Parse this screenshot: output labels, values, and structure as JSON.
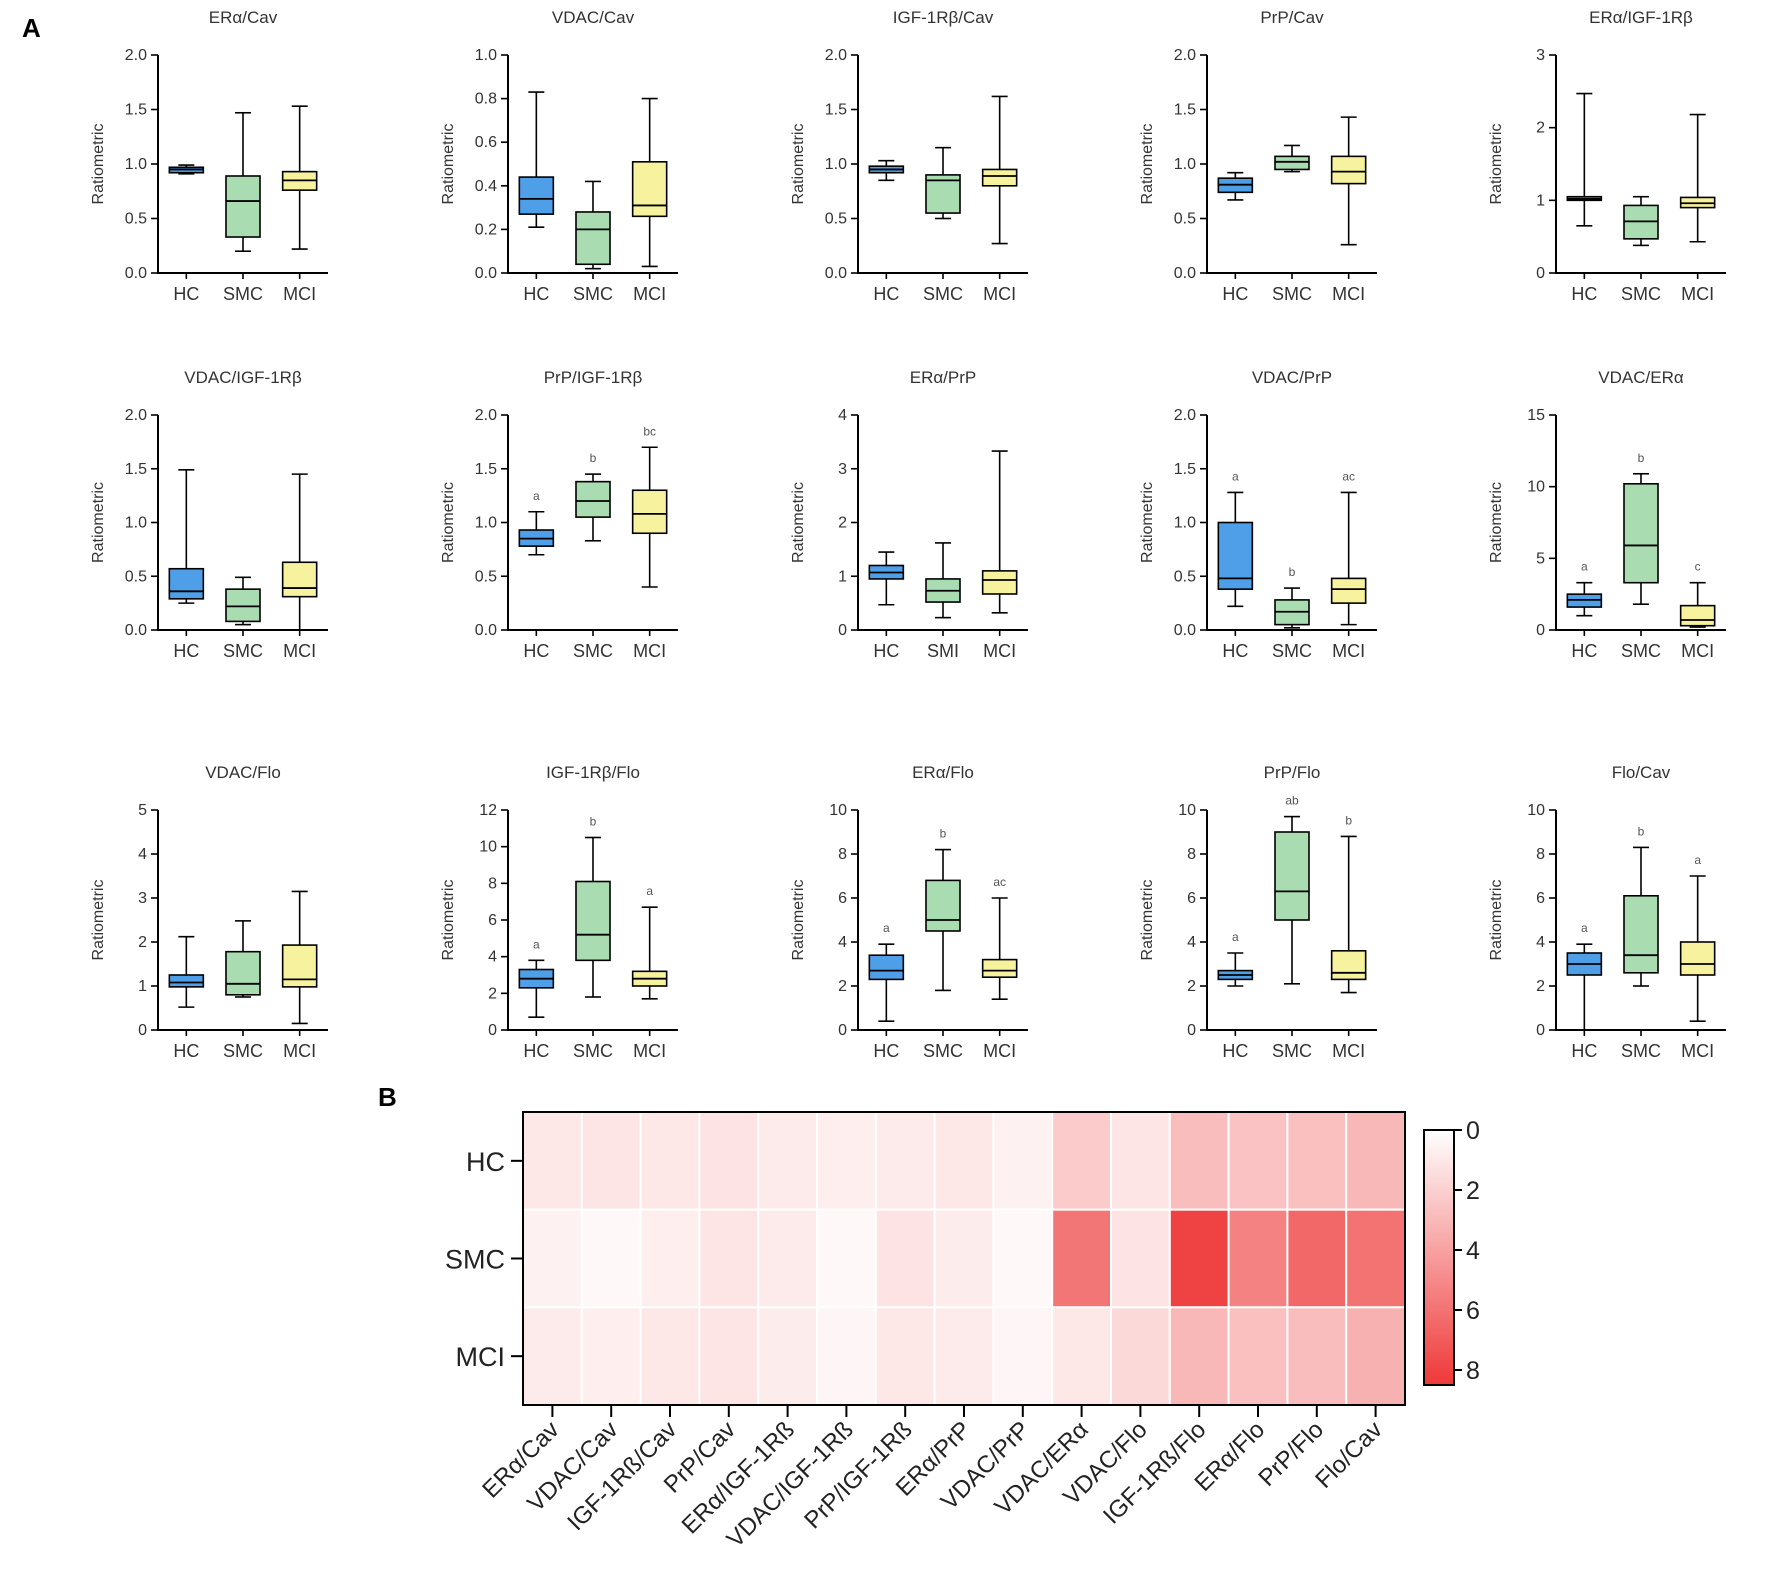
{
  "panel_labels": {
    "a": "A",
    "b": "B"
  },
  "colors": {
    "HC": "#4f9ee8",
    "SMC": "#a9dcb0",
    "MCI": "#f7f29e",
    "heat_low": "#ffffff",
    "heat_high": "#ef3838"
  },
  "chart_data": [
    {
      "type": "box",
      "title": "ERα/Cav",
      "ylabel": "Ratiometric",
      "ylim": [
        0,
        2.0
      ],
      "yticks": [
        "0.0",
        "0.5",
        "1.0",
        "1.5",
        "2.0"
      ],
      "categories": [
        "HC",
        "SMC",
        "MCI"
      ],
      "boxes": [
        {
          "min": 0.91,
          "q1": 0.92,
          "median": 0.95,
          "q3": 0.97,
          "max": 0.99
        },
        {
          "min": 0.2,
          "q1": 0.33,
          "median": 0.66,
          "q3": 0.89,
          "max": 1.47
        },
        {
          "min": 0.22,
          "q1": 0.76,
          "median": 0.85,
          "q3": 0.93,
          "max": 1.53
        }
      ],
      "letters": [
        "",
        "",
        ""
      ]
    },
    {
      "type": "box",
      "title": "VDAC/Cav",
      "ylabel": "Ratiometric",
      "ylim": [
        0,
        1.0
      ],
      "yticks": [
        "0.0",
        "0.2",
        "0.4",
        "0.6",
        "0.8",
        "1.0"
      ],
      "categories": [
        "HC",
        "SMC",
        "MCI"
      ],
      "boxes": [
        {
          "min": 0.21,
          "q1": 0.27,
          "median": 0.34,
          "q3": 0.44,
          "max": 0.83
        },
        {
          "min": 0.02,
          "q1": 0.04,
          "median": 0.2,
          "q3": 0.28,
          "max": 0.42
        },
        {
          "min": 0.03,
          "q1": 0.26,
          "median": 0.31,
          "q3": 0.51,
          "max": 0.8
        }
      ],
      "letters": [
        "",
        "",
        ""
      ]
    },
    {
      "type": "box",
      "title": "IGF-1Rβ/Cav",
      "ylabel": "Ratiometric",
      "ylim": [
        0,
        2.0
      ],
      "yticks": [
        "0.0",
        "0.5",
        "1.0",
        "1.5",
        "2.0"
      ],
      "categories": [
        "HC",
        "SMC",
        "MCI"
      ],
      "boxes": [
        {
          "min": 0.85,
          "q1": 0.92,
          "median": 0.95,
          "q3": 0.98,
          "max": 1.03
        },
        {
          "min": 0.5,
          "q1": 0.55,
          "median": 0.85,
          "q3": 0.9,
          "max": 1.15
        },
        {
          "min": 0.27,
          "q1": 0.8,
          "median": 0.89,
          "q3": 0.95,
          "max": 1.62
        }
      ],
      "letters": [
        "",
        "",
        ""
      ]
    },
    {
      "type": "box",
      "title": "PrP/Cav",
      "ylabel": "Ratiometric",
      "ylim": [
        0,
        2.0
      ],
      "yticks": [
        "0.0",
        "0.5",
        "1.0",
        "1.5",
        "2.0"
      ],
      "categories": [
        "HC",
        "SMC",
        "MCI"
      ],
      "boxes": [
        {
          "min": 0.67,
          "q1": 0.74,
          "median": 0.81,
          "q3": 0.87,
          "max": 0.92
        },
        {
          "min": 0.93,
          "q1": 0.95,
          "median": 1.02,
          "q3": 1.07,
          "max": 1.17
        },
        {
          "min": 0.26,
          "q1": 0.82,
          "median": 0.93,
          "q3": 1.07,
          "max": 1.43
        }
      ],
      "letters": [
        "",
        "",
        ""
      ]
    },
    {
      "type": "box",
      "title": "ERα/IGF-1Rβ",
      "ylabel": "Ratiometric",
      "ylim": [
        0,
        3
      ],
      "yticks": [
        "0",
        "1",
        "2",
        "3"
      ],
      "categories": [
        "HC",
        "SMC",
        "MCI"
      ],
      "boxes": [
        {
          "min": 0.65,
          "q1": 1.0,
          "median": 1.02,
          "q3": 1.05,
          "max": 2.47
        },
        {
          "min": 0.38,
          "q1": 0.47,
          "median": 0.71,
          "q3": 0.93,
          "max": 1.05
        },
        {
          "min": 0.43,
          "q1": 0.9,
          "median": 0.96,
          "q3": 1.04,
          "max": 2.18
        }
      ],
      "letters": [
        "",
        "",
        ""
      ]
    },
    {
      "type": "box",
      "title": "VDAC/IGF-1Rβ",
      "ylabel": "Ratiometric",
      "ylim": [
        0,
        2.0
      ],
      "yticks": [
        "0.0",
        "0.5",
        "1.0",
        "1.5",
        "2.0"
      ],
      "categories": [
        "HC",
        "SMC",
        "MCI"
      ],
      "boxes": [
        {
          "min": 0.25,
          "q1": 0.29,
          "median": 0.36,
          "q3": 0.57,
          "max": 1.49
        },
        {
          "min": 0.05,
          "q1": 0.08,
          "median": 0.22,
          "q3": 0.38,
          "max": 0.49
        },
        {
          "min": 0.0,
          "q1": 0.31,
          "median": 0.39,
          "q3": 0.63,
          "max": 1.45
        }
      ],
      "letters": [
        "",
        "",
        ""
      ]
    },
    {
      "type": "box",
      "title": "PrP/IGF-1Rβ",
      "ylabel": "Ratiometric",
      "ylim": [
        0,
        2.0
      ],
      "yticks": [
        "0.0",
        "0.5",
        "1.0",
        "1.5",
        "2.0"
      ],
      "categories": [
        "HC",
        "SMC",
        "MCI"
      ],
      "boxes": [
        {
          "min": 0.7,
          "q1": 0.78,
          "median": 0.85,
          "q3": 0.93,
          "max": 1.1
        },
        {
          "min": 0.83,
          "q1": 1.05,
          "median": 1.2,
          "q3": 1.38,
          "max": 1.45
        },
        {
          "min": 0.4,
          "q1": 0.9,
          "median": 1.08,
          "q3": 1.3,
          "max": 1.7
        }
      ],
      "letters": [
        "a",
        "b",
        "bc"
      ]
    },
    {
      "type": "box",
      "title": "ERα/PrP",
      "ylabel": "Ratiometric",
      "ylim": [
        0,
        4
      ],
      "yticks": [
        "0",
        "1",
        "2",
        "3",
        "4"
      ],
      "categories": [
        "HC",
        "SMI",
        "MCI"
      ],
      "boxes": [
        {
          "min": 0.47,
          "q1": 0.95,
          "median": 1.07,
          "q3": 1.2,
          "max": 1.45
        },
        {
          "min": 0.23,
          "q1": 0.52,
          "median": 0.73,
          "q3": 0.95,
          "max": 1.62
        },
        {
          "min": 0.32,
          "q1": 0.67,
          "median": 0.93,
          "q3": 1.1,
          "max": 3.33
        }
      ],
      "letters": [
        "",
        "",
        ""
      ]
    },
    {
      "type": "box",
      "title": "VDAC/PrP",
      "ylabel": "Ratiometric",
      "ylim": [
        0,
        2.0
      ],
      "yticks": [
        "0.0",
        "0.5",
        "1.0",
        "1.5",
        "2.0"
      ],
      "categories": [
        "HC",
        "SMC",
        "MCI"
      ],
      "boxes": [
        {
          "min": 0.22,
          "q1": 0.38,
          "median": 0.48,
          "q3": 1.0,
          "max": 1.28
        },
        {
          "min": 0.02,
          "q1": 0.05,
          "median": 0.17,
          "q3": 0.28,
          "max": 0.39
        },
        {
          "min": 0.05,
          "q1": 0.25,
          "median": 0.38,
          "q3": 0.48,
          "max": 1.28
        }
      ],
      "letters": [
        "a",
        "b",
        "ac"
      ]
    },
    {
      "type": "box",
      "title": "VDAC/ERα",
      "ylabel": "Ratiometric",
      "ylim": [
        0,
        15
      ],
      "yticks": [
        "0",
        "5",
        "10",
        "15"
      ],
      "categories": [
        "HC",
        "SMC",
        "MCI"
      ],
      "boxes": [
        {
          "min": 1.0,
          "q1": 1.6,
          "median": 2.1,
          "q3": 2.5,
          "max": 3.3
        },
        {
          "min": 1.8,
          "q1": 3.3,
          "median": 5.9,
          "q3": 10.2,
          "max": 10.9
        },
        {
          "min": 0.2,
          "q1": 0.3,
          "median": 0.7,
          "q3": 1.7,
          "max": 3.3
        }
      ],
      "letters": [
        "a",
        "b",
        "c"
      ]
    },
    {
      "type": "box",
      "title": "VDAC/Flo",
      "ylabel": "Ratiometric",
      "ylim": [
        0,
        5
      ],
      "yticks": [
        "0",
        "1",
        "2",
        "3",
        "4",
        "5"
      ],
      "categories": [
        "HC",
        "SMC",
        "MCI"
      ],
      "boxes": [
        {
          "min": 0.52,
          "q1": 0.98,
          "median": 1.08,
          "q3": 1.25,
          "max": 2.12
        },
        {
          "min": 0.75,
          "q1": 0.8,
          "median": 1.05,
          "q3": 1.78,
          "max": 2.48
        },
        {
          "min": 0.15,
          "q1": 0.98,
          "median": 1.15,
          "q3": 1.93,
          "max": 3.15
        }
      ],
      "letters": [
        "",
        "",
        ""
      ]
    },
    {
      "type": "box",
      "title": "IGF-1Rβ/Flo",
      "ylabel": "Ratiometric",
      "ylim": [
        0,
        12
      ],
      "yticks": [
        "0",
        "2",
        "4",
        "6",
        "8",
        "10",
        "12"
      ],
      "categories": [
        "HC",
        "SMC",
        "MCI"
      ],
      "boxes": [
        {
          "min": 0.7,
          "q1": 2.3,
          "median": 2.8,
          "q3": 3.3,
          "max": 3.8
        },
        {
          "min": 1.8,
          "q1": 3.8,
          "median": 5.2,
          "q3": 8.1,
          "max": 10.5
        },
        {
          "min": 1.7,
          "q1": 2.4,
          "median": 2.8,
          "q3": 3.2,
          "max": 6.7
        }
      ],
      "letters": [
        "a",
        "b",
        "a"
      ]
    },
    {
      "type": "box",
      "title": "ERα/Flo",
      "ylabel": "Ratiometric",
      "ylim": [
        0,
        10
      ],
      "yticks": [
        "0",
        "2",
        "4",
        "6",
        "8",
        "10"
      ],
      "categories": [
        "HC",
        "SMC",
        "MCI"
      ],
      "boxes": [
        {
          "min": 0.4,
          "q1": 2.3,
          "median": 2.7,
          "q3": 3.4,
          "max": 3.9
        },
        {
          "min": 1.8,
          "q1": 4.5,
          "median": 5.0,
          "q3": 6.8,
          "max": 8.2
        },
        {
          "min": 1.4,
          "q1": 2.4,
          "median": 2.7,
          "q3": 3.2,
          "max": 6.0
        }
      ],
      "letters": [
        "a",
        "b",
        "ac"
      ]
    },
    {
      "type": "box",
      "title": "PrP/Flo",
      "ylabel": "Ratiometric",
      "ylim": [
        0,
        10
      ],
      "yticks": [
        "0",
        "2",
        "4",
        "6",
        "8",
        "10"
      ],
      "categories": [
        "HC",
        "SMC",
        "MCI"
      ],
      "boxes": [
        {
          "min": 2.0,
          "q1": 2.3,
          "median": 2.5,
          "q3": 2.7,
          "max": 3.5
        },
        {
          "min": 2.1,
          "q1": 5.0,
          "median": 6.3,
          "q3": 9.0,
          "max": 9.7
        },
        {
          "min": 1.7,
          "q1": 2.3,
          "median": 2.6,
          "q3": 3.6,
          "max": 8.8
        }
      ],
      "letters": [
        "a",
        "ab",
        "b"
      ]
    },
    {
      "type": "box",
      "title": "Flo/Cav",
      "ylabel": "Ratiometric",
      "ylim": [
        0,
        10
      ],
      "yticks": [
        "0",
        "2",
        "4",
        "6",
        "8",
        "10"
      ],
      "categories": [
        "HC",
        "SMC",
        "MCI"
      ],
      "boxes": [
        {
          "min": 0.0,
          "q1": 2.5,
          "median": 3.0,
          "q3": 3.5,
          "max": 3.9
        },
        {
          "min": 2.0,
          "q1": 2.6,
          "median": 3.4,
          "q3": 6.1,
          "max": 8.3
        },
        {
          "min": 0.4,
          "q1": 2.5,
          "median": 3.0,
          "q3": 4.0,
          "max": 7.0
        }
      ],
      "letters": [
        "a",
        "b",
        "a"
      ]
    },
    {
      "type": "heatmap",
      "rows": [
        "HC",
        "SMC",
        "MCI"
      ],
      "columns": [
        "ERα/Cav",
        "VDAC/Cav",
        "IGF-1Rß/Cav",
        "PrP/Cav",
        "ERα/IGF-1Rß",
        "VDAC/IGF-1Rß",
        "PrP/IGF-1Rß",
        "ERα/PrP",
        "VDAC/PrP",
        "VDAC/ERα",
        "VDAC/Flo",
        "IGF-1Rß/Flo",
        "ERα/Flo",
        "PrP/Flo",
        "Flo/Cav"
      ],
      "values": [
        [
          1.0,
          1.1,
          1.0,
          1.2,
          0.9,
          0.7,
          0.9,
          1.0,
          0.6,
          2.2,
          1.1,
          2.8,
          2.6,
          2.7,
          3.0
        ],
        [
          0.6,
          0.3,
          0.7,
          1.1,
          0.9,
          0.3,
          1.2,
          0.8,
          0.3,
          5.8,
          1.2,
          8.0,
          5.3,
          6.4,
          5.9
        ],
        [
          0.9,
          0.7,
          1.0,
          1.1,
          0.8,
          0.4,
          1.0,
          0.9,
          0.4,
          1.0,
          1.6,
          3.0,
          2.7,
          2.8,
          3.3
        ]
      ],
      "colorbar": {
        "min": 0,
        "max": 8.5,
        "ticks": [
          "0",
          "2",
          "4",
          "6",
          "8"
        ]
      }
    }
  ]
}
